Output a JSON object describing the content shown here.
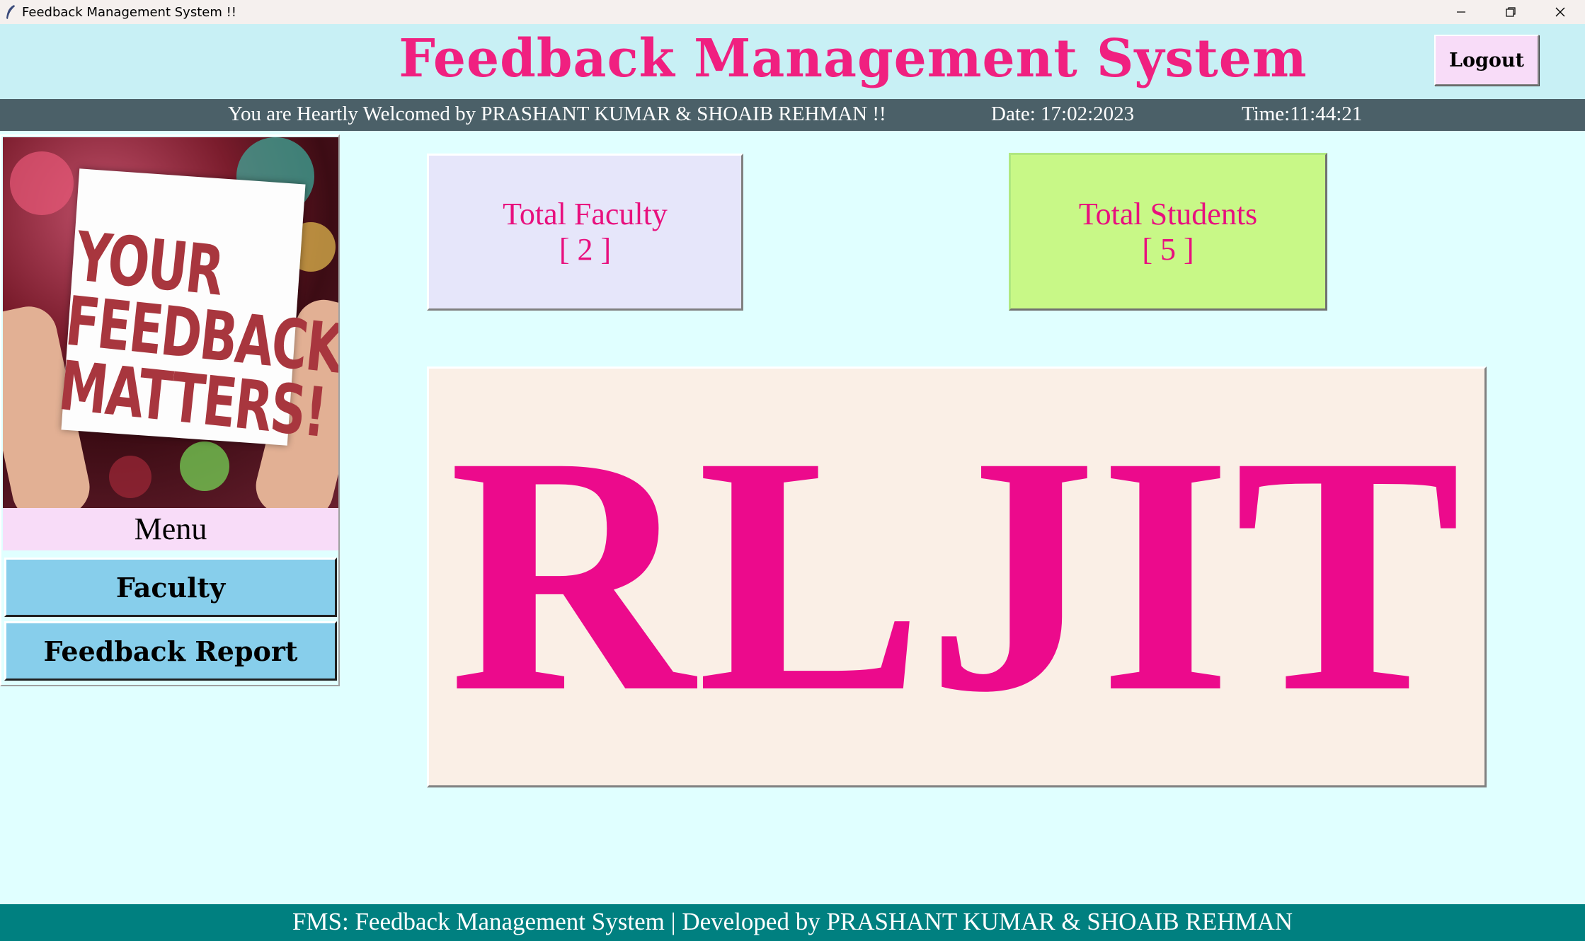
{
  "window": {
    "title": "Feedback  Management  System !!",
    "icon": "feather-icon",
    "controls": [
      "minimize-icon",
      "restore-icon",
      "close-icon"
    ]
  },
  "header": {
    "title": "Feedback Management System",
    "logout_label": "Logout"
  },
  "status_bar": {
    "welcome": "You are Heartly Welcomed by PRASHANT KUMAR & SHOAIB REHMAN !!",
    "date": "Date: 17:02:2023",
    "time": "Time:11:44:21"
  },
  "sidebar": {
    "poster_text": [
      "YOUR",
      "FEEDBACK",
      "MATTERS!"
    ],
    "menu_label": "Menu",
    "buttons": [
      {
        "label": "Faculty"
      },
      {
        "label": "Feedback Report"
      }
    ]
  },
  "stats": {
    "faculty": {
      "label": "Total Faculty",
      "count": "[ 2 ]"
    },
    "students": {
      "label": "Total Students",
      "count": "[ 5 ]"
    }
  },
  "logo": {
    "text": "RLJIT"
  },
  "footer": {
    "text": "FMS: Feedback Management System  | Developed by PRASHANT KUMAR & SHOAIB REHMAN"
  },
  "colors": {
    "title_pink": "#f02080",
    "accent_magenta": "#ec0a8c",
    "status_bar": "#4b6068",
    "footer": "#008080",
    "menu_button": "#87ceeb",
    "students_card": "#c8f887",
    "faculty_card": "#e6e6fa"
  }
}
